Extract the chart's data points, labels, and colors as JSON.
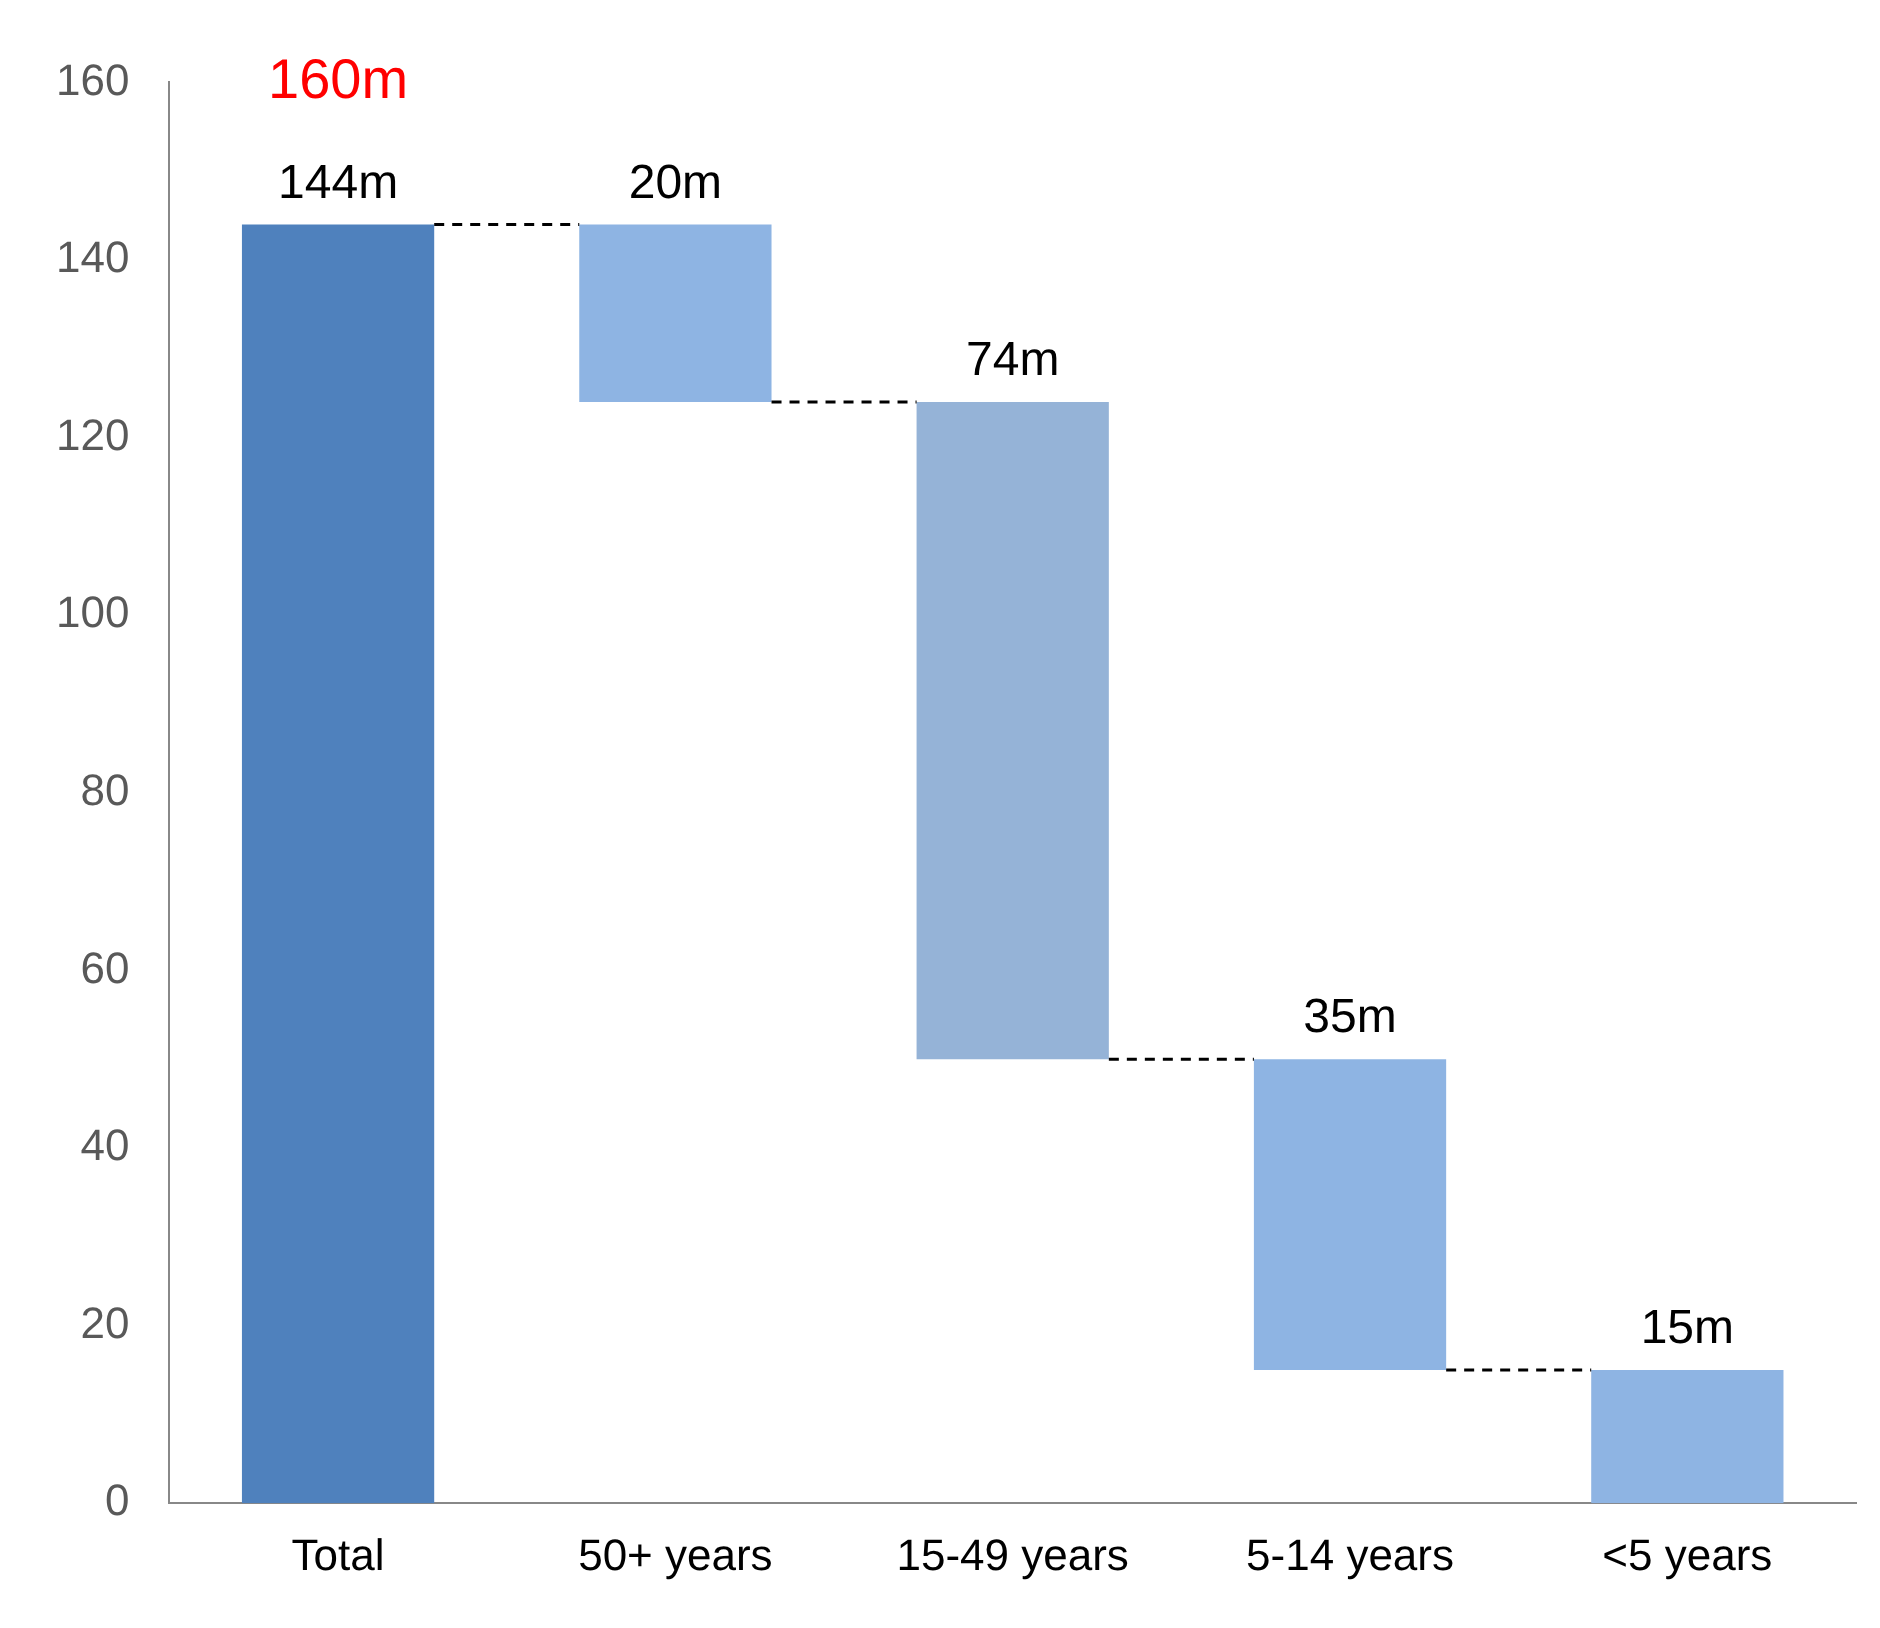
{
  "chart_data": {
    "type": "bar",
    "categories": [
      "Total",
      "50+ years",
      "15-49 years",
      "5-14 years",
      "<5 years"
    ],
    "values": [
      144,
      20,
      74,
      35,
      15
    ],
    "base": [
      0,
      124,
      50,
      15,
      0
    ],
    "colors": [
      "#4f81bd",
      "#8eb4e3",
      "#95b3d7",
      "#8eb4e3",
      "#8eb4e3"
    ],
    "value_labels": [
      "144m",
      "20m",
      "74m",
      "35m",
      "15m"
    ],
    "annotations": [
      "160m"
    ],
    "ylim": [
      0,
      160
    ],
    "yticks": [
      0,
      20,
      40,
      60,
      80,
      100,
      120,
      140,
      160
    ],
    "grid": false,
    "legend": false
  }
}
